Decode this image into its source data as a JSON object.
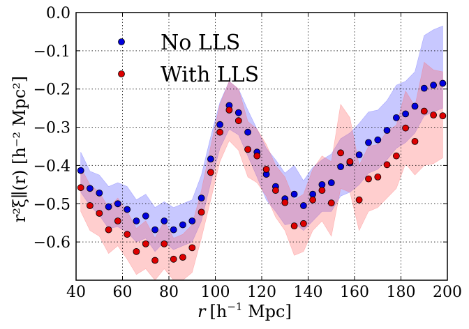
{
  "chart_data": {
    "type": "scatter",
    "title": "",
    "xlabel_pre": "r",
    "xlabel_unit": "[h",
    "xlabel_exp": "−1",
    "xlabel_post": " Mpc]",
    "ylabel": "r²ξ∥(r) [h⁻² Mpc²]",
    "xlim": [
      40,
      200
    ],
    "ylim": [
      -0.7,
      0.0
    ],
    "xticks": [
      40,
      60,
      80,
      100,
      120,
      140,
      160,
      180,
      200
    ],
    "yticks": [
      0.0,
      -0.1,
      -0.2,
      -0.3,
      -0.4,
      -0.5,
      -0.6
    ],
    "xtick_labels": [
      "40",
      "60",
      "80",
      "100",
      "120",
      "140",
      "160",
      "180",
      "200"
    ],
    "ytick_labels": [
      "0.0",
      "−0.1",
      "−0.2",
      "−0.3",
      "−0.4",
      "−0.5",
      "−0.6"
    ],
    "grid": true,
    "legend_position": "top-left",
    "series": [
      {
        "name": "No LLS",
        "color": "#0000dd",
        "band_color": "#5555ff",
        "x": [
          42,
          46,
          50,
          54,
          58,
          62,
          66,
          70,
          74,
          78,
          82,
          86,
          90,
          94,
          98,
          102,
          106,
          110,
          114,
          118,
          122,
          126,
          130,
          134,
          138,
          142,
          146,
          150,
          154,
          158,
          162,
          166,
          170,
          174,
          178,
          182,
          186,
          190,
          194,
          198
        ],
        "values": [
          -0.413,
          -0.46,
          -0.472,
          -0.508,
          -0.5,
          -0.515,
          -0.545,
          -0.532,
          -0.568,
          -0.545,
          -0.568,
          -0.555,
          -0.545,
          -0.485,
          -0.383,
          -0.293,
          -0.243,
          -0.262,
          -0.313,
          -0.365,
          -0.423,
          -0.455,
          -0.487,
          -0.475,
          -0.505,
          -0.475,
          -0.45,
          -0.445,
          -0.403,
          -0.393,
          -0.372,
          -0.34,
          -0.333,
          -0.308,
          -0.275,
          -0.265,
          -0.245,
          -0.198,
          -0.19,
          -0.185
        ],
        "band_lower": [
          -0.47,
          -0.505,
          -0.53,
          -0.565,
          -0.56,
          -0.575,
          -0.6,
          -0.59,
          -0.625,
          -0.6,
          -0.62,
          -0.61,
          -0.6,
          -0.545,
          -0.445,
          -0.355,
          -0.305,
          -0.32,
          -0.375,
          -0.43,
          -0.49,
          -0.52,
          -0.555,
          -0.55,
          -0.57,
          -0.545,
          -0.52,
          -0.52,
          -0.48,
          -0.47,
          -0.45,
          -0.42,
          -0.41,
          -0.385,
          -0.355,
          -0.34,
          -0.315,
          -0.27,
          -0.26,
          -0.25
        ],
        "band_upper": [
          -0.365,
          -0.415,
          -0.425,
          -0.455,
          -0.445,
          -0.455,
          -0.49,
          -0.475,
          -0.51,
          -0.495,
          -0.51,
          -0.5,
          -0.49,
          -0.425,
          -0.325,
          -0.235,
          -0.18,
          -0.2,
          -0.255,
          -0.305,
          -0.355,
          -0.385,
          -0.42,
          -0.4,
          -0.44,
          -0.405,
          -0.385,
          -0.37,
          -0.33,
          -0.315,
          -0.29,
          -0.26,
          -0.255,
          -0.23,
          -0.19,
          -0.18,
          -0.155,
          -0.06,
          -0.045,
          -0.035
        ]
      },
      {
        "name": "With LLS",
        "color": "#dd0000",
        "band_color": "#ff6666",
        "x": [
          42,
          46,
          50,
          54,
          58,
          62,
          66,
          70,
          74,
          78,
          82,
          86,
          90,
          94,
          98,
          102,
          106,
          110,
          114,
          118,
          122,
          126,
          130,
          134,
          138,
          142,
          146,
          150,
          154,
          158,
          162,
          166,
          170,
          174,
          178,
          182,
          186,
          190,
          194,
          198
        ],
        "values": [
          -0.458,
          -0.505,
          -0.525,
          -0.568,
          -0.545,
          -0.58,
          -0.625,
          -0.605,
          -0.648,
          -0.605,
          -0.645,
          -0.64,
          -0.615,
          -0.522,
          -0.418,
          -0.313,
          -0.255,
          -0.283,
          -0.358,
          -0.375,
          -0.41,
          -0.465,
          -0.497,
          -0.558,
          -0.552,
          -0.49,
          -0.465,
          -0.498,
          -0.367,
          -0.39,
          -0.49,
          -0.435,
          -0.43,
          -0.398,
          -0.375,
          -0.302,
          -0.337,
          -0.258,
          -0.268,
          -0.27
        ],
        "band_lower": [
          -0.52,
          -0.57,
          -0.585,
          -0.63,
          -0.61,
          -0.645,
          -0.685,
          -0.67,
          -0.7,
          -0.67,
          -0.7,
          -0.7,
          -0.68,
          -0.59,
          -0.49,
          -0.39,
          -0.335,
          -0.36,
          -0.43,
          -0.445,
          -0.48,
          -0.535,
          -0.57,
          -0.635,
          -0.625,
          -0.57,
          -0.545,
          -0.585,
          -0.46,
          -0.47,
          -0.57,
          -0.52,
          -0.51,
          -0.485,
          -0.46,
          -0.395,
          -0.425,
          -0.4,
          -0.395,
          -0.38
        ],
        "band_upper": [
          -0.405,
          -0.45,
          -0.47,
          -0.51,
          -0.485,
          -0.52,
          -0.565,
          -0.545,
          -0.59,
          -0.545,
          -0.59,
          -0.58,
          -0.555,
          -0.465,
          -0.35,
          -0.24,
          -0.18,
          -0.2,
          -0.285,
          -0.305,
          -0.345,
          -0.4,
          -0.43,
          -0.49,
          -0.475,
          -0.41,
          -0.375,
          -0.39,
          -0.24,
          -0.275,
          -0.4,
          -0.35,
          -0.345,
          -0.31,
          -0.295,
          -0.205,
          -0.245,
          -0.13,
          -0.15,
          -0.155
        ]
      }
    ]
  }
}
